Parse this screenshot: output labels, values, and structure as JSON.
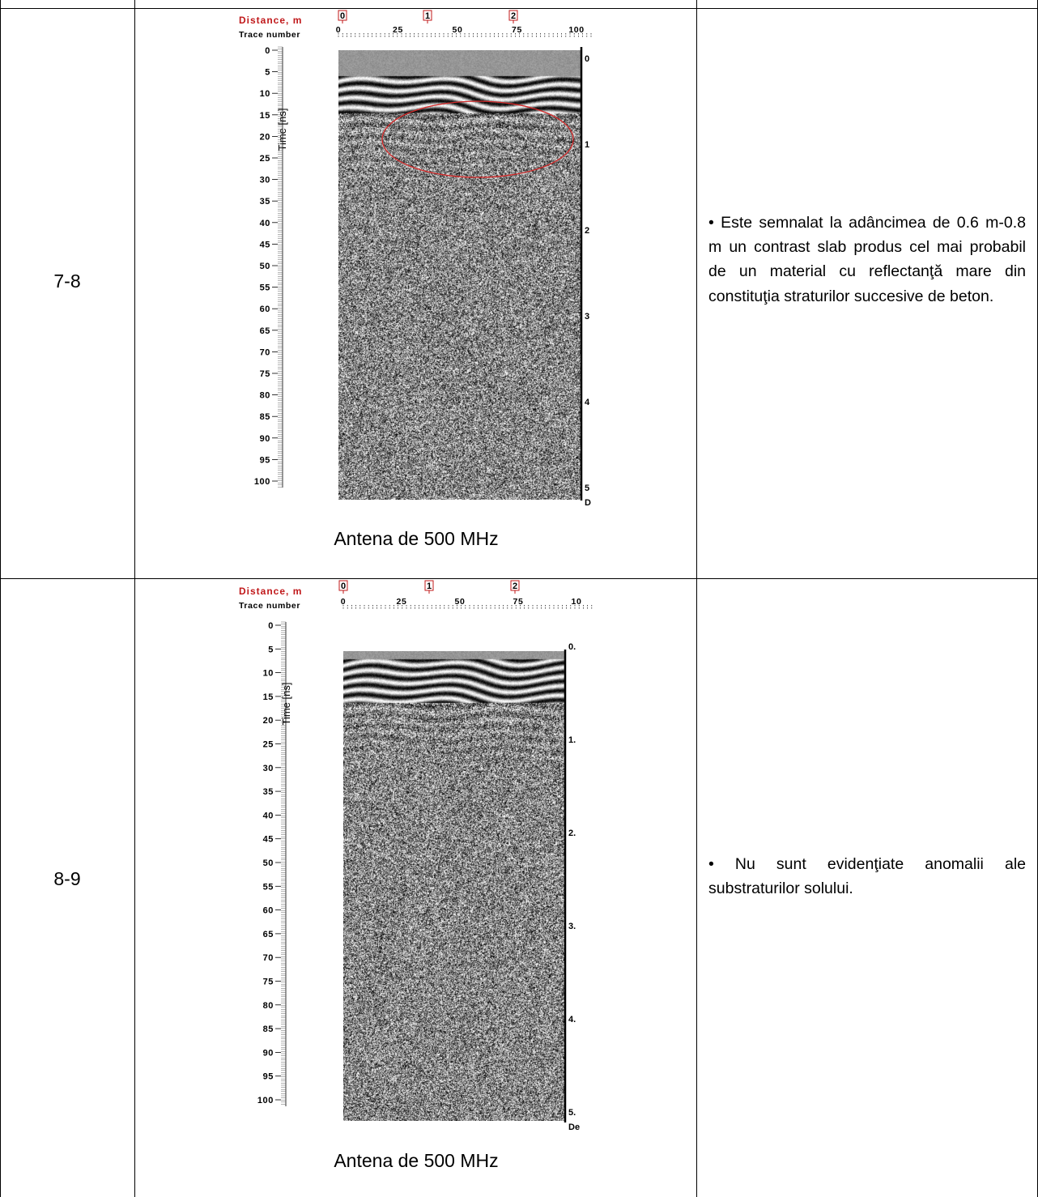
{
  "rows": [
    {
      "label": "7-8",
      "description": "• Este semnalat la adâncimea de 0.6 m-0.8 m un contrast slab produs cel mai probabil de un material cu reflectanţă mare din constituţia straturilor succesive de beton.",
      "caption": "Antena de 500 MHz",
      "radar": {
        "distance_label": "Distance, m",
        "distance_markers": [
          "0",
          "1",
          "2"
        ],
        "trace_label": "Trace number",
        "trace_ticks": [
          "0",
          "25",
          "50",
          "75",
          "100"
        ],
        "time_label": "Time [ns]",
        "time_ticks": [
          "0",
          "5",
          "10",
          "15",
          "20",
          "25",
          "30",
          "35",
          "40",
          "45",
          "50",
          "55",
          "60",
          "65",
          "70",
          "75",
          "80",
          "85",
          "90",
          "95",
          "100"
        ],
        "depth_ticks": [
          "0",
          "1",
          "2",
          "3",
          "4",
          "5",
          "D"
        ]
      }
    },
    {
      "label": "8-9",
      "description": "• Nu sunt evidenţiate anomalii ale substraturilor solului.",
      "caption": "Antena de 500 MHz",
      "radar": {
        "distance_label": "Distance, m",
        "distance_markers": [
          "0",
          "1",
          "2"
        ],
        "trace_label": "Trace number",
        "trace_ticks": [
          "0",
          "25",
          "50",
          "75",
          "10"
        ],
        "time_label": "Time [ns]",
        "time_ticks": [
          "0",
          "5",
          "10",
          "15",
          "20",
          "25",
          "30",
          "35",
          "40",
          "45",
          "50",
          "55",
          "60",
          "65",
          "70",
          "75",
          "80",
          "85",
          "90",
          "95",
          "100"
        ],
        "depth_ticks": [
          "0.",
          "1.",
          "2.",
          "3.",
          "4.",
          "5.",
          "De"
        ]
      }
    }
  ]
}
